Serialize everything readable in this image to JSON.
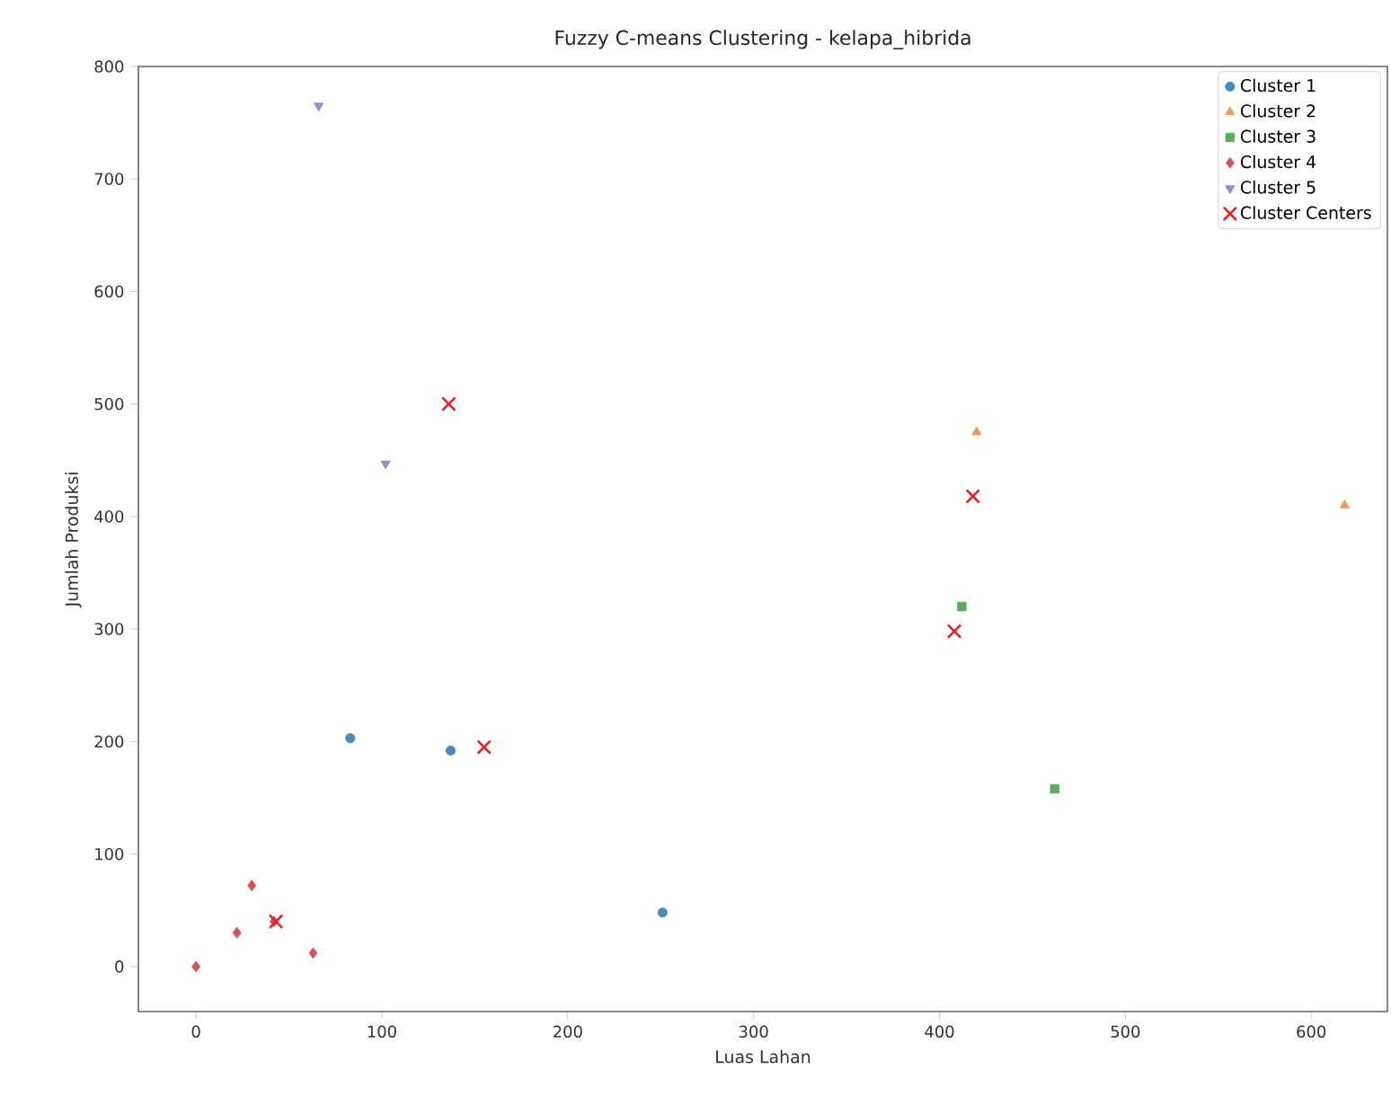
{
  "chart_data": {
    "type": "scatter",
    "title": "Fuzzy C-means Clustering - kelapa_hibrida",
    "xlabel": "Luas Lahan",
    "ylabel": "Jumlah Produksi",
    "xlim": [
      -31,
      641
    ],
    "ylim": [
      -40,
      800
    ],
    "xticks": [
      0,
      100,
      200,
      300,
      400,
      500,
      600
    ],
    "yticks": [
      0,
      100,
      200,
      300,
      400,
      500,
      600,
      700,
      800
    ],
    "grid": false,
    "legend": "top right",
    "series": [
      {
        "name": "Cluster 1",
        "color": "#4a8bc0",
        "marker": "circle",
        "x": [
          83,
          137,
          251
        ],
        "values": [
          203,
          192,
          48
        ]
      },
      {
        "name": "Cluster 2",
        "color": "#f39a52",
        "marker": "triangle",
        "x": [
          420,
          618
        ],
        "values": [
          475,
          410
        ]
      },
      {
        "name": "Cluster 3",
        "color": "#5aad5a",
        "marker": "square",
        "x": [
          412,
          462
        ],
        "values": [
          320,
          158
        ]
      },
      {
        "name": "Cluster 4",
        "color": "#d5515a",
        "marker": "diamond",
        "x": [
          0,
          22,
          30,
          42,
          63
        ],
        "values": [
          0,
          30,
          72,
          40,
          12
        ]
      },
      {
        "name": "Cluster 5",
        "color": "#9c8cc8",
        "marker": "triangle-down",
        "x": [
          66,
          102
        ],
        "values": [
          765,
          447
        ]
      },
      {
        "name": "Cluster Centers",
        "color": "#e8202a",
        "marker": "cross",
        "x": [
          136,
          418,
          408,
          155,
          43
        ],
        "values": [
          500,
          418,
          298,
          195,
          40
        ]
      }
    ]
  }
}
